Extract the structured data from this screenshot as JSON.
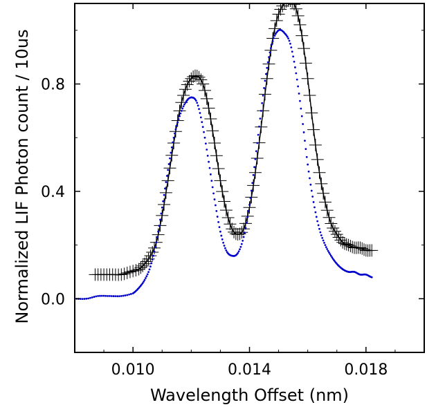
{
  "chart_data": {
    "type": "scatter",
    "title": "",
    "xlabel": "Wavelength Offset (nm)",
    "ylabel": "Normalized LIF Photon count / 10us",
    "xlim": [
      0.008,
      0.02
    ],
    "ylim": [
      -0.2,
      1.1
    ],
    "xticks": [
      0.01,
      0.014,
      0.018
    ],
    "xtick_labels": [
      "0.010",
      "0.014",
      "0.018"
    ],
    "yticks": [
      0.0,
      0.4,
      0.8
    ],
    "ytick_labels": [
      "0.0",
      "0.4",
      "0.8"
    ],
    "grid": false,
    "legend": "none",
    "series": [
      {
        "marker": "plus",
        "color": "#000000",
        "line": "solid",
        "x": [
          0.0087,
          0.009,
          0.0093,
          0.0096,
          0.0099,
          0.0102,
          0.0104,
          0.0106,
          0.0108,
          0.011,
          0.0112,
          0.0114,
          0.0116,
          0.0118,
          0.012,
          0.0122,
          0.0124,
          0.0126,
          0.0128,
          0.013,
          0.0132,
          0.0134,
          0.0136,
          0.0138,
          0.014,
          0.0142,
          0.0144,
          0.0146,
          0.0148,
          0.015,
          0.0152,
          0.0154,
          0.0156,
          0.0158,
          0.016,
          0.0162,
          0.0164,
          0.0166,
          0.0168,
          0.017,
          0.0172,
          0.0174,
          0.0176,
          0.0178,
          0.018,
          0.0182
        ],
        "y": [
          0.09,
          0.09,
          0.09,
          0.09,
          0.1,
          0.11,
          0.13,
          0.16,
          0.21,
          0.31,
          0.44,
          0.58,
          0.7,
          0.78,
          0.82,
          0.83,
          0.8,
          0.71,
          0.58,
          0.44,
          0.33,
          0.26,
          0.24,
          0.26,
          0.34,
          0.47,
          0.64,
          0.82,
          0.97,
          1.06,
          1.1,
          1.11,
          1.08,
          0.98,
          0.82,
          0.63,
          0.47,
          0.36,
          0.28,
          0.24,
          0.21,
          0.2,
          0.19,
          0.19,
          0.18,
          0.18
        ]
      },
      {
        "marker": "dot",
        "color": "#0000cc",
        "line": "dotted",
        "x": [
          0.008,
          0.0084,
          0.0088,
          0.0092,
          0.0096,
          0.01,
          0.0102,
          0.0104,
          0.0106,
          0.0108,
          0.011,
          0.0112,
          0.0114,
          0.0116,
          0.0118,
          0.012,
          0.0122,
          0.0124,
          0.0126,
          0.0128,
          0.013,
          0.0132,
          0.0134,
          0.0136,
          0.0138,
          0.014,
          0.0142,
          0.0144,
          0.0146,
          0.0148,
          0.015,
          0.0152,
          0.0154,
          0.0156,
          0.0158,
          0.016,
          0.0162,
          0.0164,
          0.0166,
          0.0168,
          0.017,
          0.0172,
          0.0174,
          0.0176,
          0.0178,
          0.018,
          0.0182
        ],
        "y": [
          0.0,
          0.0,
          0.01,
          0.01,
          0.01,
          0.02,
          0.04,
          0.07,
          0.12,
          0.21,
          0.34,
          0.48,
          0.6,
          0.68,
          0.73,
          0.75,
          0.73,
          0.64,
          0.51,
          0.37,
          0.25,
          0.18,
          0.16,
          0.17,
          0.23,
          0.35,
          0.52,
          0.7,
          0.86,
          0.96,
          1.0,
          0.99,
          0.95,
          0.84,
          0.68,
          0.5,
          0.36,
          0.26,
          0.2,
          0.16,
          0.13,
          0.11,
          0.1,
          0.1,
          0.09,
          0.09,
          0.08
        ]
      }
    ]
  }
}
